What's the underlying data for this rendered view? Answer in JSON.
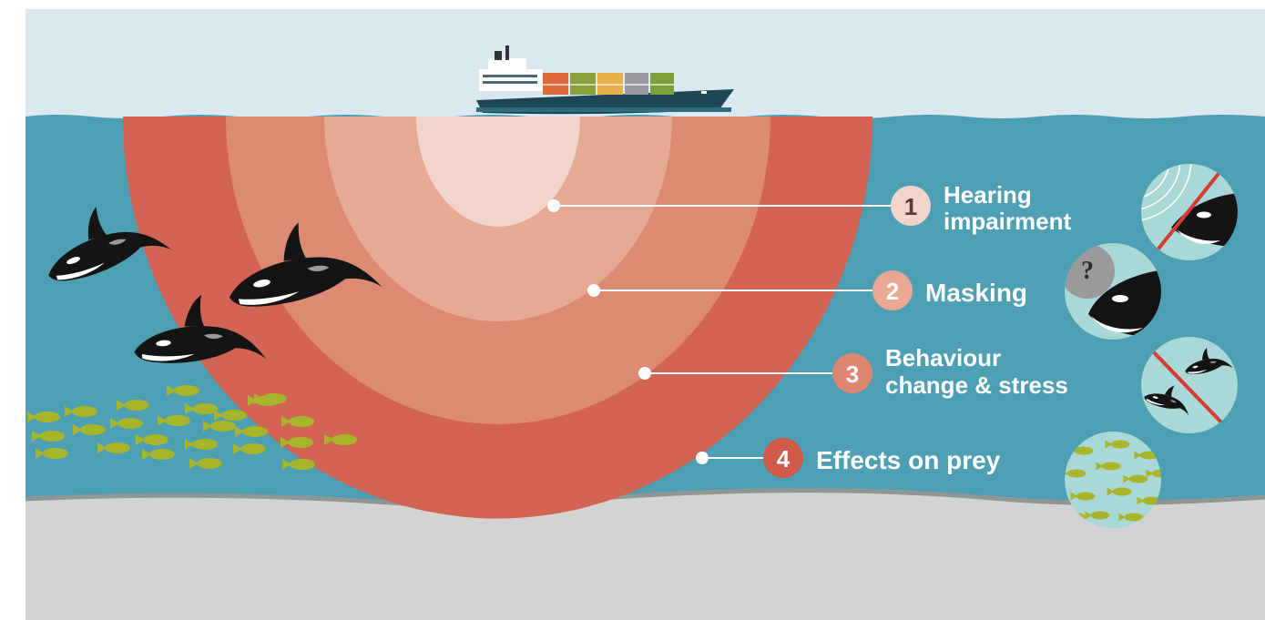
{
  "zones": [
    {
      "number": "1",
      "label_lines": [
        "Hearing",
        "impairment"
      ],
      "badge_color": "#f2d5ca",
      "number_color": "#5a3a32"
    },
    {
      "number": "2",
      "label_lines": [
        "Masking"
      ],
      "badge_color": "#e8a893",
      "number_color": "#ffffff"
    },
    {
      "number": "3",
      "label_lines": [
        "Behaviour",
        "change & stress"
      ],
      "badge_color": "#dc8570",
      "number_color": "#ffffff"
    },
    {
      "number": "4",
      "label_lines": [
        "Effects on prey"
      ],
      "badge_color": "#cf5a49",
      "number_color": "#ffffff"
    }
  ],
  "icon_symbols": {
    "question_mark": "?"
  },
  "colors": {
    "sky": "#dbe9ee",
    "water": "#4d9fb3",
    "seabed": "#d3d3d3",
    "zone_inner": "#f2d5ca",
    "zone_2": "#e6aa94",
    "zone_3": "#dc8a74",
    "zone_4": "#d36353",
    "icon_bg": "#a9d8d6",
    "prohibit": "#d33b33",
    "fish": "#a6b52a"
  }
}
